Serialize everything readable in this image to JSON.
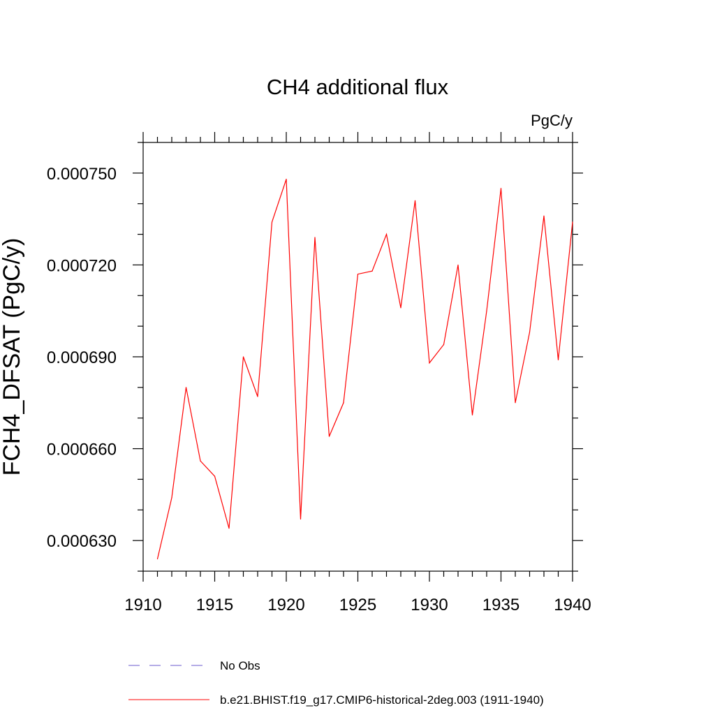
{
  "chart_data": {
    "type": "line",
    "title": "CH4 additional flux",
    "units": "PgC/y",
    "ylabel": "FCH4_DFSAT  (PgC/y)",
    "xlabel": "",
    "xlim": [
      1910,
      1940
    ],
    "ylim": [
      0.00062,
      0.00076
    ],
    "x_ticks": [
      1910,
      1915,
      1920,
      1925,
      1930,
      1935,
      1940
    ],
    "x_tick_labels": [
      "1910",
      "1915",
      "1920",
      "1925",
      "1930",
      "1935",
      "1940"
    ],
    "y_ticks": [
      0.00063,
      0.00066,
      0.00069,
      0.00072,
      0.00075
    ],
    "y_tick_labels": [
      "0.000630",
      "0.000660",
      "0.000690",
      "0.000720",
      "0.000750"
    ],
    "y_minor_step": 1e-05,
    "x_minor_step": 1,
    "grid": false,
    "legend_position": "bottom",
    "series": [
      {
        "name": "b.e21.BHIST.f19_g17.CMIP6-historical-2deg.003 (1911-1940)",
        "color": "#ff0000",
        "style": "solid",
        "x": [
          1911,
          1912,
          1913,
          1914,
          1915,
          1916,
          1917,
          1918,
          1919,
          1920,
          1921,
          1922,
          1923,
          1924,
          1925,
          1926,
          1927,
          1928,
          1929,
          1930,
          1931,
          1932,
          1933,
          1934,
          1935,
          1936,
          1937,
          1938,
          1939,
          1940
        ],
        "values": [
          0.000624,
          0.000644,
          0.00068,
          0.000656,
          0.000651,
          0.000634,
          0.00069,
          0.000677,
          0.000734,
          0.000748,
          0.000637,
          0.000729,
          0.000664,
          0.000675,
          0.000717,
          0.000718,
          0.00073,
          0.000706,
          0.000741,
          0.000688,
          0.000694,
          0.00072,
          0.000671,
          0.000705,
          0.000745,
          0.000675,
          0.000698,
          0.000736,
          0.000689,
          0.000734
        ]
      }
    ],
    "legend": [
      {
        "label": "No Obs",
        "color": "#6a5acd",
        "style": "dashed"
      },
      {
        "label": "b.e21.BHIST.f19_g17.CMIP6-historical-2deg.003 (1911-1940)",
        "color": "#ff0000",
        "style": "solid"
      }
    ]
  }
}
